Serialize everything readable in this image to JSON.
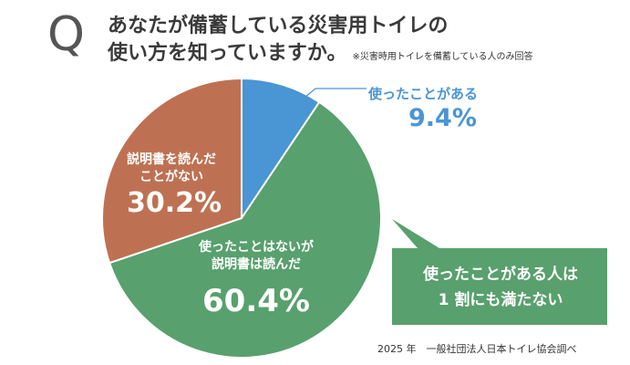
{
  "title": {
    "q_letter": "Q",
    "line1": "あなたが備蓄している災害用トイレの",
    "line2": "使い方を知っていますか。",
    "note": "※災害時用トイレを備蓄している人のみ回答"
  },
  "chart_data": {
    "type": "pie",
    "start_angle_deg": 0,
    "direction": "clockwise",
    "slices": [
      {
        "label": "使ったことがある",
        "value": 9.4,
        "value_label": "9.4%",
        "color": "#4a95d4"
      },
      {
        "label": "使ったことはないが説明書は読んだ",
        "label_lines": [
          "使ったことはないが",
          "説明書は読んだ"
        ],
        "value": 60.4,
        "value_label": "60.4%",
        "color": "#58a06d"
      },
      {
        "label": "説明書を読んだことがない",
        "label_lines": [
          "説明書を読んだ",
          "ことがない"
        ],
        "value": 30.2,
        "value_label": "30.2%",
        "color": "#be7152"
      }
    ],
    "callout": {
      "lines": [
        "使ったことがある人は",
        "1 割にも満たない"
      ],
      "color": "#58a06d"
    },
    "source": "2025 年　一般社団法人日本トイレ協会調べ"
  }
}
